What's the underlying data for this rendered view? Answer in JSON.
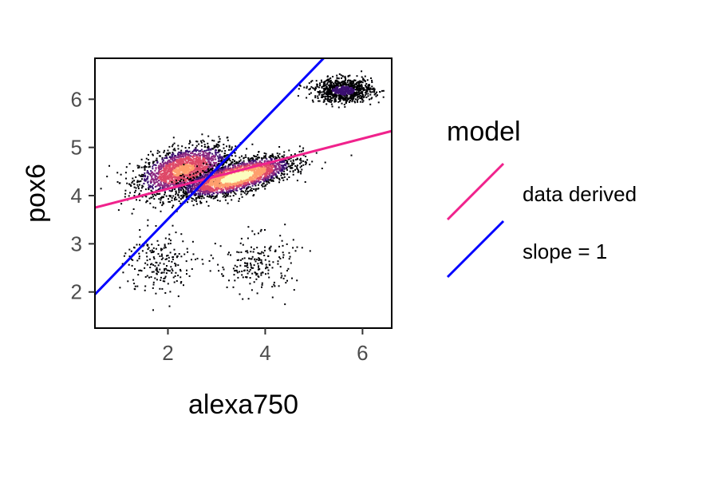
{
  "chart_data": {
    "type": "scatter",
    "title": "",
    "xlabel": "alexa750",
    "ylabel": "pox6",
    "xlim": [
      0.5,
      6.6
    ],
    "ylim": [
      1.25,
      6.85
    ],
    "x_ticks": [
      2,
      4,
      6
    ],
    "y_ticks": [
      2,
      3,
      4,
      5,
      6
    ],
    "grid": false,
    "density_palette": [
      "#000004",
      "#3b0f70",
      "#8c2981",
      "#de4968",
      "#fe9f6d",
      "#fcfdbf"
    ],
    "point_clusters": [
      {
        "center_x": 2.3,
        "center_y": 4.55,
        "spread_x": 0.45,
        "spread_y": 0.22,
        "density": 0.75
      },
      {
        "center_x": 3.4,
        "center_y": 4.4,
        "spread_x": 0.55,
        "spread_y": 0.15,
        "density": 1.0
      },
      {
        "center_x": 5.6,
        "center_y": 6.2,
        "spread_x": 0.3,
        "spread_y": 0.12,
        "density": 0.35
      },
      {
        "center_x": 1.8,
        "center_y": 2.6,
        "spread_x": 0.35,
        "spread_y": 0.35,
        "density": 0.08
      },
      {
        "center_x": 3.8,
        "center_y": 2.6,
        "spread_x": 0.4,
        "spread_y": 0.3,
        "density": 0.08
      }
    ],
    "series": [
      {
        "name": "data derived",
        "type": "line",
        "color": "#f0228c",
        "x": [
          0.5,
          6.6
        ],
        "y": [
          3.75,
          5.34
        ]
      },
      {
        "name": "slope = 1",
        "type": "line",
        "color": "#0000ff",
        "x": [
          0.5,
          5.2
        ],
        "y": [
          1.95,
          6.85
        ]
      }
    ],
    "legend": {
      "title": "model",
      "position": "right",
      "items": [
        {
          "label": "data derived",
          "color": "#f0228c"
        },
        {
          "label": "slope = 1",
          "color": "#0000ff"
        }
      ]
    }
  }
}
